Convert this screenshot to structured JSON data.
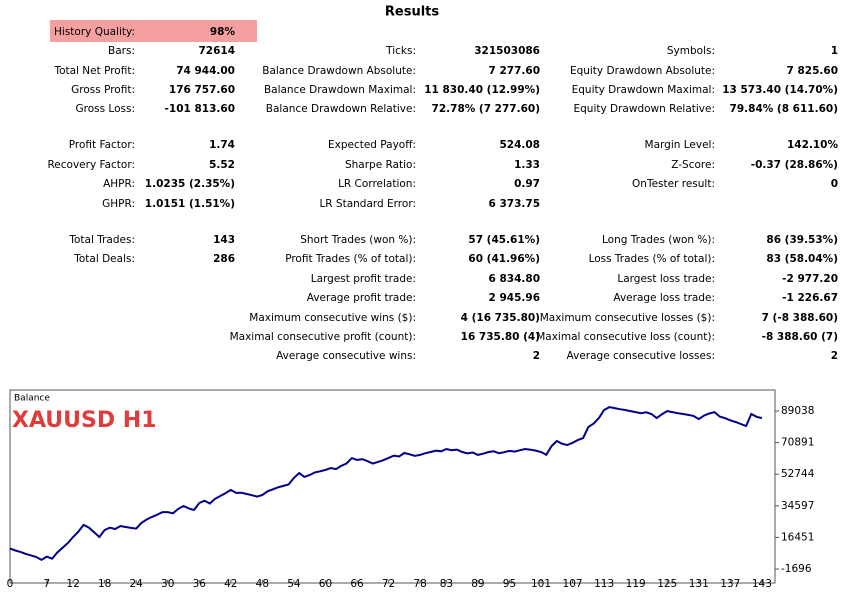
{
  "header": {
    "title": "Results"
  },
  "quality": {
    "label": "History Quality:",
    "value": "98%"
  },
  "stats": [
    [
      {
        "label": "Bars:",
        "value": "72614"
      },
      {
        "label": "Ticks:",
        "value": "321503086"
      },
      {
        "label": "Symbols:",
        "value": "1"
      }
    ],
    [
      {
        "label": "Total Net Profit:",
        "value": "74 944.00"
      },
      {
        "label": "Balance Drawdown Absolute:",
        "value": "7 277.60"
      },
      {
        "label": "Equity Drawdown Absolute:",
        "value": "7 825.60"
      }
    ],
    [
      {
        "label": "Gross Profit:",
        "value": "176 757.60"
      },
      {
        "label": "Balance Drawdown Maximal:",
        "value": "11 830.40 (12.99%)"
      },
      {
        "label": "Equity Drawdown Maximal:",
        "value": "13 573.40 (14.70%)"
      }
    ],
    [
      {
        "label": "Gross Loss:",
        "value": "-101 813.60"
      },
      {
        "label": "Balance Drawdown Relative:",
        "value": "72.78% (7 277.60)"
      },
      {
        "label": "Equity Drawdown Relative:",
        "value": "79.84% (8 611.60)"
      }
    ],
    [
      {
        "label": "Profit Factor:",
        "value": "1.74"
      },
      {
        "label": "Expected Payoff:",
        "value": "524.08"
      },
      {
        "label": "Margin Level:",
        "value": "142.10%"
      }
    ],
    [
      {
        "label": "Recovery Factor:",
        "value": "5.52"
      },
      {
        "label": "Sharpe Ratio:",
        "value": "1.33"
      },
      {
        "label": "Z-Score:",
        "value": "-0.37 (28.86%)"
      }
    ],
    [
      {
        "label": "AHPR:",
        "value": "1.0235 (2.35%)"
      },
      {
        "label": "LR Correlation:",
        "value": "0.97"
      },
      {
        "label": "OnTester result:",
        "value": "0"
      }
    ],
    [
      {
        "label": "GHPR:",
        "value": "1.0151 (1.51%)"
      },
      {
        "label": "LR Standard Error:",
        "value": "6 373.75"
      },
      null
    ],
    [
      {
        "label": "Total Trades:",
        "value": "143"
      },
      {
        "label": "Short Trades (won %):",
        "value": "57 (45.61%)"
      },
      {
        "label": "Long Trades (won %):",
        "value": "86 (39.53%)"
      }
    ],
    [
      {
        "label": "Total Deals:",
        "value": "286"
      },
      {
        "label": "Profit Trades (% of total):",
        "value": "60 (41.96%)"
      },
      {
        "label": "Loss Trades (% of total):",
        "value": "83 (58.04%)"
      }
    ],
    [
      null,
      {
        "label": "Largest profit trade:",
        "value": "6 834.80"
      },
      {
        "label": "Largest loss trade:",
        "value": "-2 977.20"
      }
    ],
    [
      null,
      {
        "label": "Average profit trade:",
        "value": "2 945.96"
      },
      {
        "label": "Average loss trade:",
        "value": "-1 226.67"
      }
    ],
    [
      null,
      {
        "label": "Maximum consecutive wins ($):",
        "value": "4 (16 735.80)"
      },
      {
        "label": "Maximum consecutive losses ($):",
        "value": "7 (-8 388.60)"
      }
    ],
    [
      null,
      {
        "label": "Maximal consecutive profit (count):",
        "value": "16 735.80 (4)"
      },
      {
        "label": "Maximal consecutive loss (count):",
        "value": "-8 388.60 (7)"
      }
    ],
    [
      null,
      {
        "label": "Average consecutive wins:",
        "value": "2"
      },
      {
        "label": "Average consecutive losses:",
        "value": "2"
      }
    ]
  ],
  "chart_data": {
    "type": "line",
    "title": "Balance",
    "annotation": "XAUUSD H1",
    "color": "#00008b",
    "x": [
      0,
      1,
      2,
      3,
      4,
      5,
      6,
      7,
      8,
      9,
      10,
      11,
      12,
      13,
      14,
      15,
      16,
      17,
      18,
      19,
      20,
      21,
      22,
      23,
      24,
      25,
      26,
      27,
      28,
      29,
      30,
      31,
      32,
      33,
      34,
      35,
      36,
      37,
      38,
      39,
      40,
      41,
      42,
      43,
      44,
      45,
      46,
      47,
      48,
      49,
      50,
      51,
      52,
      53,
      54,
      55,
      56,
      57,
      58,
      59,
      60,
      61,
      62,
      63,
      64,
      65,
      66,
      67,
      68,
      69,
      70,
      71,
      72,
      73,
      74,
      75,
      76,
      77,
      78,
      79,
      80,
      81,
      82,
      83,
      84,
      85,
      86,
      87,
      88,
      89,
      90,
      91,
      92,
      93,
      94,
      95,
      96,
      97,
      98,
      99,
      100,
      101,
      102,
      103,
      104,
      105,
      106,
      107,
      108,
      109,
      110,
      111,
      112,
      113,
      114,
      115,
      116,
      117,
      118,
      119,
      120,
      121,
      122,
      123,
      124,
      125,
      126,
      127,
      128,
      129,
      130,
      131,
      132,
      133,
      134,
      135,
      136,
      137,
      138,
      139,
      140,
      141,
      142,
      143
    ],
    "values": [
      10000,
      8900,
      8100,
      7000,
      6100,
      5200,
      3500,
      5400,
      4200,
      7800,
      10500,
      13200,
      16700,
      19800,
      23600,
      22100,
      19400,
      16700,
      20700,
      22000,
      21300,
      23000,
      22400,
      21900,
      21500,
      24800,
      26700,
      28200,
      29500,
      31000,
      31000,
      30300,
      32800,
      34500,
      33100,
      32200,
      36200,
      37500,
      35900,
      38600,
      40200,
      41900,
      43700,
      42000,
      42100,
      41400,
      40700,
      39900,
      40800,
      42900,
      44100,
      45200,
      46000,
      46900,
      50600,
      53400,
      51200,
      52300,
      53800,
      54400,
      55200,
      56300,
      55700,
      57500,
      58900,
      62000,
      60900,
      61400,
      60200,
      58900,
      59800,
      60800,
      62100,
      63400,
      62900,
      64900,
      64200,
      63300,
      63800,
      64800,
      65500,
      66300,
      65900,
      67200,
      66500,
      66900,
      65500,
      64700,
      65200,
      63800,
      64500,
      65500,
      65900,
      64800,
      65400,
      66100,
      65700,
      66500,
      67200,
      66800,
      66300,
      65500,
      63900,
      68900,
      71800,
      70200,
      69500,
      70800,
      72400,
      73500,
      79900,
      81800,
      85000,
      89600,
      91300,
      90700,
      90100,
      89600,
      89000,
      88400,
      87800,
      88300,
      87300,
      85000,
      87200,
      89000,
      88400,
      87800,
      87300,
      86800,
      86200,
      84400,
      86400,
      87600,
      88400,
      85800,
      84900,
      83700,
      82700,
      81600,
      80400,
      87300,
      85700,
      84944
    ],
    "xlim": [
      0,
      145.5
    ],
    "xticks": [
      0,
      7,
      12,
      18,
      24,
      30,
      36,
      42,
      48,
      54,
      60,
      66,
      72,
      78,
      83,
      89,
      95,
      101,
      107,
      113,
      119,
      125,
      131,
      137,
      143
    ],
    "ylim": [
      -9740,
      101100
    ],
    "yticks": [
      -1696,
      16451,
      34597,
      52744,
      70891,
      89038
    ]
  }
}
